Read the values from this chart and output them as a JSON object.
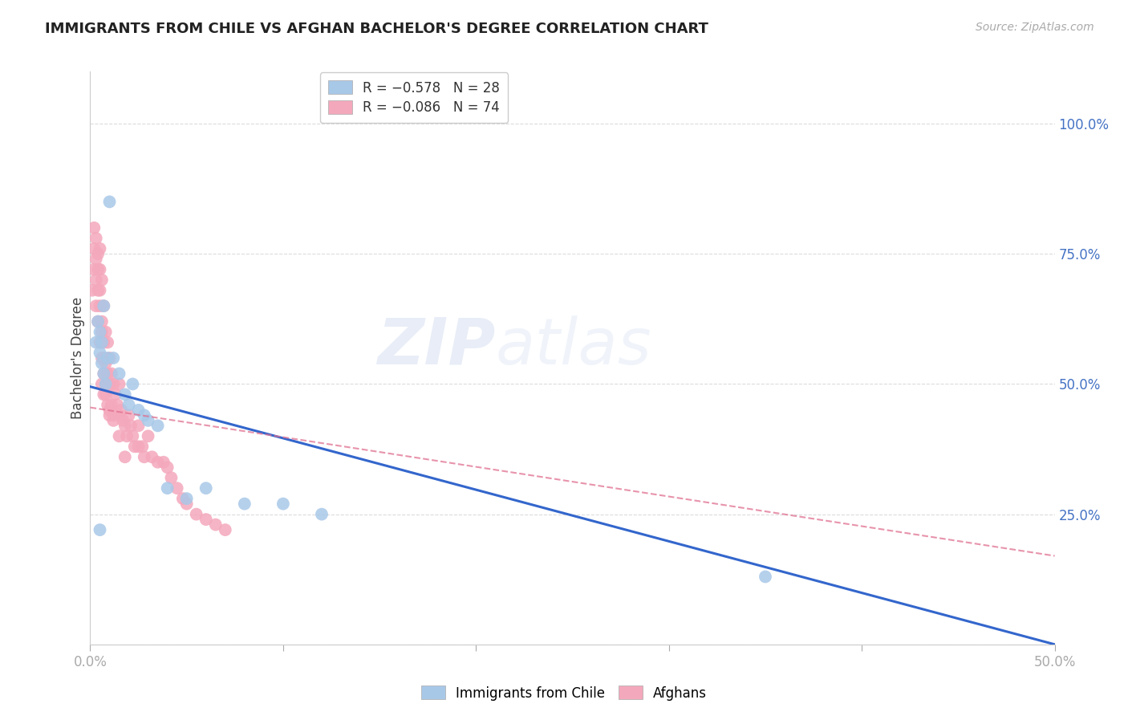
{
  "title": "IMMIGRANTS FROM CHILE VS AFGHAN BACHELOR'S DEGREE CORRELATION CHART",
  "source": "Source: ZipAtlas.com",
  "ylabel": "Bachelor's Degree",
  "right_yticks": [
    "100.0%",
    "75.0%",
    "50.0%",
    "25.0%"
  ],
  "right_ytick_vals": [
    1.0,
    0.75,
    0.5,
    0.25
  ],
  "xlim": [
    0.0,
    0.5
  ],
  "ylim": [
    0.0,
    1.1
  ],
  "chile_color": "#a8c8e8",
  "afghan_color": "#f4a8bc",
  "chile_edge_color": "#6699cc",
  "afghan_edge_color": "#e07090",
  "chile_line_color": "#3366CC",
  "afghan_line_color": "#E07090",
  "chile_scatter_x": [
    0.003,
    0.004,
    0.005,
    0.005,
    0.006,
    0.006,
    0.007,
    0.007,
    0.008,
    0.009,
    0.01,
    0.012,
    0.015,
    0.018,
    0.02,
    0.022,
    0.025,
    0.028,
    0.03,
    0.035,
    0.04,
    0.05,
    0.06,
    0.08,
    0.1,
    0.12,
    0.35,
    0.005
  ],
  "chile_scatter_y": [
    0.58,
    0.62,
    0.6,
    0.56,
    0.54,
    0.58,
    0.65,
    0.52,
    0.5,
    0.55,
    0.85,
    0.55,
    0.52,
    0.48,
    0.46,
    0.5,
    0.45,
    0.44,
    0.43,
    0.42,
    0.3,
    0.28,
    0.3,
    0.27,
    0.27,
    0.25,
    0.13,
    0.22
  ],
  "afghan_scatter_x": [
    0.001,
    0.002,
    0.002,
    0.003,
    0.003,
    0.003,
    0.004,
    0.004,
    0.004,
    0.005,
    0.005,
    0.005,
    0.005,
    0.006,
    0.006,
    0.006,
    0.006,
    0.007,
    0.007,
    0.007,
    0.007,
    0.008,
    0.008,
    0.008,
    0.009,
    0.009,
    0.009,
    0.01,
    0.01,
    0.01,
    0.011,
    0.011,
    0.012,
    0.012,
    0.013,
    0.014,
    0.015,
    0.015,
    0.016,
    0.017,
    0.018,
    0.019,
    0.02,
    0.021,
    0.022,
    0.023,
    0.025,
    0.025,
    0.027,
    0.028,
    0.03,
    0.032,
    0.035,
    0.038,
    0.04,
    0.042,
    0.045,
    0.048,
    0.05,
    0.055,
    0.06,
    0.065,
    0.07,
    0.002,
    0.003,
    0.004,
    0.005,
    0.006,
    0.007,
    0.008,
    0.01,
    0.012,
    0.015,
    0.018
  ],
  "afghan_scatter_y": [
    0.68,
    0.8,
    0.72,
    0.78,
    0.7,
    0.65,
    0.75,
    0.68,
    0.62,
    0.76,
    0.72,
    0.65,
    0.58,
    0.7,
    0.62,
    0.55,
    0.5,
    0.65,
    0.58,
    0.52,
    0.48,
    0.6,
    0.54,
    0.48,
    0.58,
    0.52,
    0.46,
    0.55,
    0.5,
    0.44,
    0.52,
    0.46,
    0.5,
    0.44,
    0.48,
    0.46,
    0.5,
    0.44,
    0.45,
    0.43,
    0.42,
    0.4,
    0.44,
    0.42,
    0.4,
    0.38,
    0.42,
    0.38,
    0.38,
    0.36,
    0.4,
    0.36,
    0.35,
    0.35,
    0.34,
    0.32,
    0.3,
    0.28,
    0.27,
    0.25,
    0.24,
    0.23,
    0.22,
    0.76,
    0.74,
    0.72,
    0.68,
    0.6,
    0.55,
    0.5,
    0.45,
    0.43,
    0.4,
    0.36
  ],
  "watermark_zip": "ZIP",
  "watermark_atlas": "atlas",
  "background_color": "#ffffff",
  "grid_color": "#d8d8d8",
  "xtick_positions": [
    0.0,
    0.1,
    0.2,
    0.3,
    0.4,
    0.5
  ],
  "ytick_positions": [
    0.0,
    0.25,
    0.5,
    0.75,
    1.0
  ],
  "chile_line_x": [
    0.0,
    0.5
  ],
  "chile_line_y": [
    0.495,
    0.0
  ],
  "afghan_line_x": [
    0.0,
    0.5
  ],
  "afghan_line_y": [
    0.455,
    0.17
  ]
}
